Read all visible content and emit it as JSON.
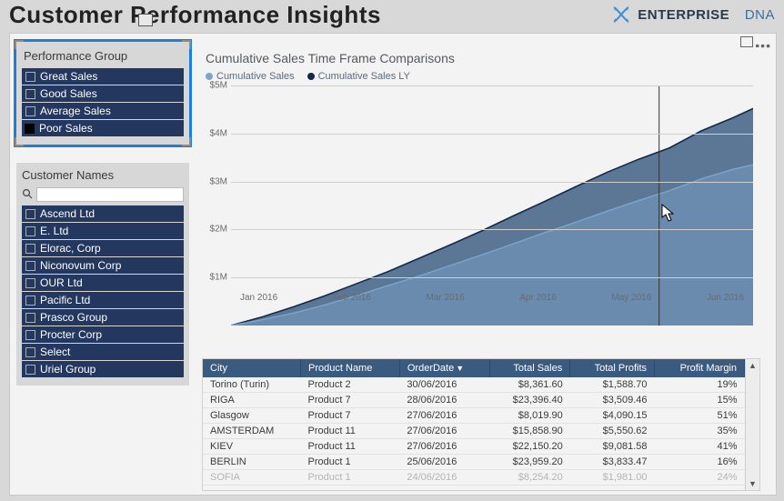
{
  "header": {
    "title": "Customer Performance Insights",
    "brand_word1": "ENTERPRISE",
    "brand_word2": "DNA"
  },
  "slicer_perf": {
    "title": "Performance Group",
    "items": [
      {
        "label": "Great Sales",
        "checked": false
      },
      {
        "label": "Good Sales",
        "checked": false
      },
      {
        "label": "Average Sales",
        "checked": false
      },
      {
        "label": "Poor Sales",
        "checked": true
      }
    ],
    "highlight_color": "#1e7fd6"
  },
  "slicer_names": {
    "title": "Customer Names",
    "search_placeholder": "",
    "items": [
      "Ascend Ltd",
      "E. Ltd",
      "Elorac, Corp",
      "Niconovum Corp",
      "OUR Ltd",
      "Pacific Ltd",
      "Prasco Group",
      "Procter Corp",
      "Select",
      "Uriel Group"
    ]
  },
  "chart": {
    "title": "Cumulative Sales Time Frame Comparisons",
    "legend": [
      {
        "label": "Cumulative Sales",
        "color": "#7aa6cf"
      },
      {
        "label": "Cumulative Sales LY",
        "color": "#12294b"
      }
    ],
    "y_ticks": [
      "$5M",
      "$4M",
      "$3M",
      "$2M",
      "$1M"
    ],
    "y_max": 5000000,
    "x_labels": [
      "Jan 2016",
      "Feb 2016",
      "Mar 2016",
      "Apr 2016",
      "May 2016",
      "Jun 2016"
    ],
    "series_current": [
      [
        0,
        0
      ],
      [
        0.06,
        120000
      ],
      [
        0.12,
        260000
      ],
      [
        0.18,
        430000
      ],
      [
        0.24,
        620000
      ],
      [
        0.3,
        830000
      ],
      [
        0.36,
        1030000
      ],
      [
        0.42,
        1250000
      ],
      [
        0.48,
        1470000
      ],
      [
        0.54,
        1700000
      ],
      [
        0.6,
        1930000
      ],
      [
        0.66,
        2150000
      ],
      [
        0.72,
        2380000
      ],
      [
        0.78,
        2600000
      ],
      [
        0.84,
        2810000
      ],
      [
        0.9,
        3050000
      ],
      [
        0.96,
        3250000
      ],
      [
        1.0,
        3350000
      ]
    ],
    "series_ly": [
      [
        0,
        0
      ],
      [
        0.06,
        180000
      ],
      [
        0.12,
        390000
      ],
      [
        0.18,
        620000
      ],
      [
        0.24,
        870000
      ],
      [
        0.3,
        1120000
      ],
      [
        0.36,
        1400000
      ],
      [
        0.42,
        1680000
      ],
      [
        0.48,
        1970000
      ],
      [
        0.54,
        2280000
      ],
      [
        0.6,
        2580000
      ],
      [
        0.66,
        2890000
      ],
      [
        0.72,
        3190000
      ],
      [
        0.78,
        3460000
      ],
      [
        0.84,
        3700000
      ],
      [
        0.9,
        4050000
      ],
      [
        0.96,
        4320000
      ],
      [
        1.0,
        4520000
      ]
    ],
    "crosshair_x": 0.82,
    "colors": {
      "area_current": "#6d8db0",
      "area_ly": "#2a4d77",
      "grid": "#cfcfcf",
      "background": "#f3f3f3"
    }
  },
  "table": {
    "columns": [
      "City",
      "Product Name",
      "OrderDate",
      "Total Sales",
      "Total Profits",
      "Profit Margin"
    ],
    "sorted_col": 2,
    "sort_dir": "desc",
    "rows": [
      [
        "Torino (Turin)",
        "Product 2",
        "30/06/2016",
        "$8,361.60",
        "$1,588.70",
        "19%"
      ],
      [
        "RIGA",
        "Product 7",
        "28/06/2016",
        "$23,396.40",
        "$3,509.46",
        "15%"
      ],
      [
        "Glasgow",
        "Product 7",
        "27/06/2016",
        "$8,019.90",
        "$4,090.15",
        "51%"
      ],
      [
        "AMSTERDAM",
        "Product 11",
        "27/06/2016",
        "$15,858.90",
        "$5,550.62",
        "35%"
      ],
      [
        "KIEV",
        "Product 11",
        "27/06/2016",
        "$22,150.20",
        "$9,081.58",
        "41%"
      ],
      [
        "BERLIN",
        "Product 1",
        "25/06/2016",
        "$23,959.20",
        "$3,833.47",
        "16%"
      ],
      [
        "SOFIA",
        "Product 1",
        "24/06/2016",
        "$8,254.20",
        "$1,981.00",
        "24%"
      ]
    ]
  }
}
